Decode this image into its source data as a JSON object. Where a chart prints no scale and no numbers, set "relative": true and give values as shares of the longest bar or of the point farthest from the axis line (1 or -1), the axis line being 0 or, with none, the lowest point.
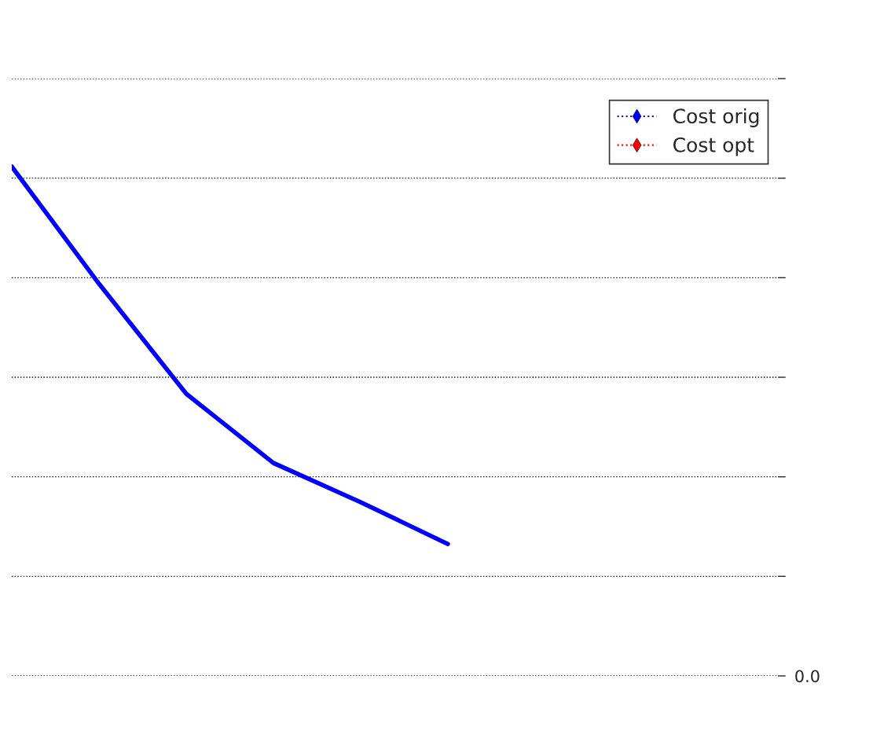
{
  "chart_data": {
    "type": "line",
    "relative": true,
    "categories": [
      null,
      null,
      null,
      null,
      null,
      null
    ],
    "series": [
      {
        "name": "Cost orig",
        "color": "#0000ff",
        "values": [
          1,
          0.77,
          0.554,
          0.418,
          0.341,
          0.259
        ]
      },
      {
        "name": "Cost opt",
        "color": "#ff0000",
        "values": [
          null,
          null,
          null,
          null,
          null,
          null
        ]
      }
    ],
    "annotations": [
      "0.0"
    ],
    "grid": "y",
    "legend": "top right",
    "tick_labels": "y"
  }
}
